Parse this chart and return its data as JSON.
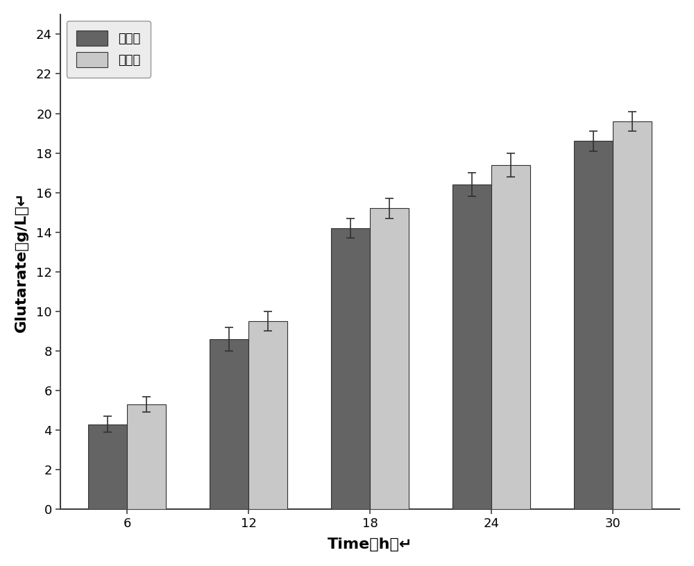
{
  "time_points": [
    6,
    12,
    18,
    24,
    30
  ],
  "control_values": [
    4.3,
    8.6,
    14.2,
    16.4,
    18.6
  ],
  "experiment_values": [
    5.3,
    9.5,
    15.2,
    17.4,
    19.6
  ],
  "control_errors": [
    0.4,
    0.6,
    0.5,
    0.6,
    0.5
  ],
  "experiment_errors": [
    0.4,
    0.5,
    0.5,
    0.6,
    0.5
  ],
  "control_color": "#646464",
  "experiment_color": "#c8c8c8",
  "bar_width": 0.32,
  "xlabel": "Time（h）",
  "ylabel": "Glutarate（g/L）",
  "ylim": [
    0,
    25
  ],
  "yticks": [
    0,
    2,
    4,
    6,
    8,
    10,
    12,
    14,
    16,
    18,
    20,
    22,
    24
  ],
  "legend_label_control": "对照组",
  "legend_label_experiment": "实验组",
  "figure_facecolor": "#ffffff",
  "axes_facecolor": "#ffffff",
  "spine_color": "#404040",
  "label_fontsize": 16,
  "tick_fontsize": 13,
  "legend_fontsize": 13,
  "bar_edgecolor": "#303030",
  "bar_linewidth": 0.8
}
